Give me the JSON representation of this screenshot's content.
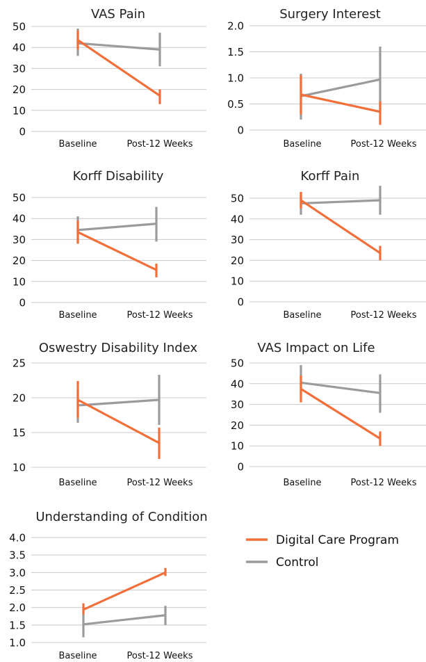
{
  "colors": {
    "dcp": "#F26F3A",
    "control": "#9A9B9D",
    "grid": "#C8C8C8"
  },
  "legend": [
    {
      "key": "dcp",
      "label": "Digital Care Program"
    },
    {
      "key": "control",
      "label": "Control"
    }
  ],
  "chart_data": [
    {
      "type": "line",
      "title": "VAS Pain",
      "x": [
        "Baseline",
        "Post-12 Weeks"
      ],
      "ylim": [
        0,
        50
      ],
      "yticks": [
        0,
        10,
        20,
        30,
        40,
        50
      ],
      "ytick_labels": [
        "0",
        "10",
        "20",
        "30",
        "40",
        "50"
      ],
      "grid": true,
      "series": [
        {
          "name": "Digital Care Program",
          "key": "dcp",
          "values": [
            43.5,
            17
          ],
          "err": [
            [
              39,
              48
            ],
            [
              13,
              20
            ]
          ]
        },
        {
          "name": "Control",
          "key": "control",
          "values": [
            42,
            39
          ],
          "err": [
            [
              36,
              49
            ],
            [
              31,
              47
            ]
          ]
        }
      ]
    },
    {
      "type": "line",
      "title": "Surgery Interest",
      "x": [
        "Baseline",
        "Post-12 Weeks"
      ],
      "ylim": [
        0,
        2
      ],
      "yticks": [
        0,
        0.5,
        1,
        1.5,
        2
      ],
      "ytick_labels": [
        "0",
        "0.5",
        "1.0",
        "1.5",
        "2.0"
      ],
      "grid": true,
      "series": [
        {
          "name": "Digital Care Program",
          "key": "dcp",
          "values": [
            0.68,
            0.35
          ],
          "err": [
            [
              0.3,
              1.05
            ],
            [
              0.1,
              0.55
            ]
          ]
        },
        {
          "name": "Control",
          "key": "control",
          "values": [
            0.65,
            0.97
          ],
          "err": [
            [
              0.2,
              1.08
            ],
            [
              0.38,
              1.6
            ]
          ]
        }
      ]
    },
    {
      "type": "line",
      "title": "Korff Disability",
      "x": [
        "Baseline",
        "Post-12 Weeks"
      ],
      "ylim": [
        0,
        50
      ],
      "yticks": [
        0,
        10,
        20,
        30,
        40,
        50
      ],
      "ytick_labels": [
        "0",
        "10",
        "20",
        "30",
        "40",
        "50"
      ],
      "grid": true,
      "series": [
        {
          "name": "Digital Care Program",
          "key": "dcp",
          "values": [
            33.5,
            15.5
          ],
          "err": [
            [
              28,
              39
            ],
            [
              12,
              18.5
            ]
          ]
        },
        {
          "name": "Control",
          "key": "control",
          "values": [
            34.5,
            37.5
          ],
          "err": [
            [
              28,
              41
            ],
            [
              29,
              45.5
            ]
          ]
        }
      ]
    },
    {
      "type": "line",
      "title": "Korff Pain",
      "x": [
        "Baseline",
        "Post-12 Weeks"
      ],
      "ylim": [
        0,
        50
      ],
      "yticks": [
        0,
        10,
        20,
        30,
        40,
        50
      ],
      "ytick_labels": [
        "0",
        "10",
        "20",
        "30",
        "40",
        "50"
      ],
      "grid": true,
      "series": [
        {
          "name": "Digital Care Program",
          "key": "dcp",
          "values": [
            49,
            23.5
          ],
          "err": [
            [
              45,
              53
            ],
            [
              20,
              27
            ]
          ]
        },
        {
          "name": "Control",
          "key": "control",
          "values": [
            47.5,
            49
          ],
          "err": [
            [
              42,
              53
            ],
            [
              42,
              56
            ]
          ]
        }
      ]
    },
    {
      "type": "line",
      "title": "Oswestry Disability Index",
      "x": [
        "Baseline",
        "Post-12 Weeks"
      ],
      "ylim": [
        10,
        25
      ],
      "yticks": [
        10,
        15,
        20,
        25
      ],
      "ytick_labels": [
        "10",
        "15",
        "20",
        "25"
      ],
      "grid": true,
      "series": [
        {
          "name": "Digital Care Program",
          "key": "dcp",
          "values": [
            19.7,
            13.5
          ],
          "err": [
            [
              17.1,
              22.4
            ],
            [
              11.2,
              15.7
            ]
          ]
        },
        {
          "name": "Control",
          "key": "control",
          "values": [
            18.9,
            19.7
          ],
          "err": [
            [
              16.4,
              21.4
            ],
            [
              16.1,
              23.3
            ]
          ]
        }
      ]
    },
    {
      "type": "line",
      "title": "VAS Impact on Life",
      "x": [
        "Baseline",
        "Post-12 Weeks"
      ],
      "ylim": [
        0,
        50
      ],
      "yticks": [
        0,
        10,
        20,
        30,
        40,
        50
      ],
      "ytick_labels": [
        "0",
        "10",
        "20",
        "30",
        "40",
        "50"
      ],
      "grid": true,
      "series": [
        {
          "name": "Digital Care Program",
          "key": "dcp",
          "values": [
            37.5,
            13.5
          ],
          "err": [
            [
              31,
              44
            ],
            [
              10,
              17
            ]
          ]
        },
        {
          "name": "Control",
          "key": "control",
          "values": [
            40.5,
            35.5
          ],
          "err": [
            [
              33,
              49
            ],
            [
              26,
              44.5
            ]
          ]
        }
      ]
    },
    {
      "type": "line",
      "title": "Understanding of Condition",
      "x": [
        "Baseline",
        "Post-12 Weeks"
      ],
      "ylim": [
        1,
        4
      ],
      "yticks": [
        1,
        1.5,
        2,
        2.5,
        3,
        3.5,
        4
      ],
      "ytick_labels": [
        "1.0",
        "1.5",
        "2.0",
        "2.5",
        "3.0",
        "3.5",
        "4.0"
      ],
      "grid": true,
      "series": [
        {
          "name": "Digital Care Program",
          "key": "dcp",
          "values": [
            1.94,
            3.0
          ],
          "err": [
            [
              1.8,
              2.12
            ],
            [
              2.9,
              3.13
            ]
          ]
        },
        {
          "name": "Control",
          "key": "control",
          "values": [
            1.52,
            1.78
          ],
          "err": [
            [
              1.15,
              1.85
            ],
            [
              1.5,
              2.05
            ]
          ]
        }
      ]
    }
  ]
}
